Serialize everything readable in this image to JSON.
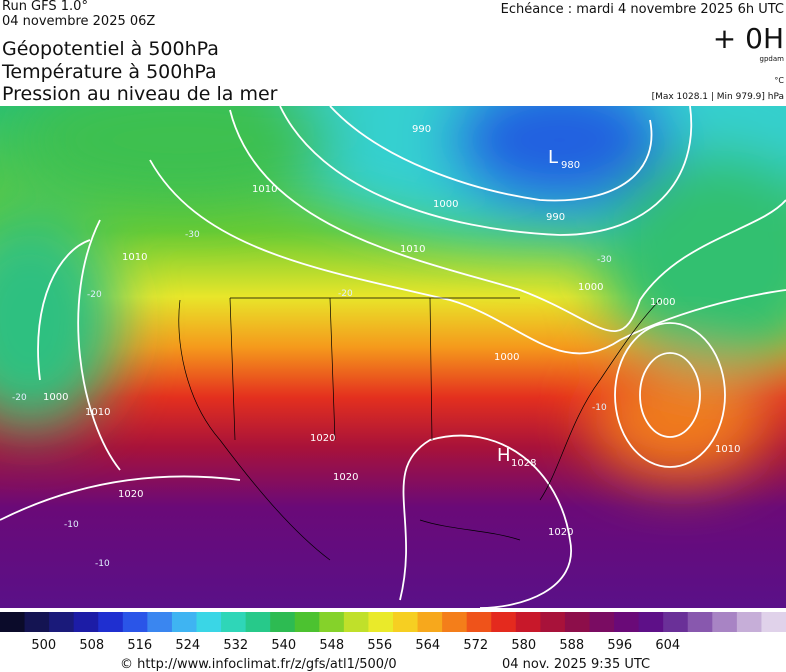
{
  "header": {
    "run": "Run GFS 1.0°",
    "run_date": "04 novembre 2025 06Z",
    "echeance": "Echéance : mardi 4 novembre 2025 6h UTC",
    "offset": "+ 0H",
    "unit_geo": "gpdam",
    "unit_temp": "°C",
    "pressure_range": "[Max 1028.1 | Min 979.9] hPa",
    "titles": [
      "Géopotentiel à 500hPa",
      "Température à 500hPa",
      "Pression au niveau de la mer"
    ]
  },
  "map": {
    "centers": [
      {
        "letter": "L",
        "value": "980"
      },
      {
        "letter": "H",
        "value": "1028"
      }
    ],
    "isobar_labels": [
      "990",
      "1000",
      "1010",
      "1010",
      "1000",
      "990",
      "1000",
      "1010",
      "1020",
      "1020",
      "1020",
      "1020",
      "1010",
      "1000",
      "1010",
      "1000"
    ],
    "temperature_labels": [
      "-30",
      "-20",
      "-20",
      "-10",
      "-20",
      "-30",
      "-10",
      "-10"
    ]
  },
  "colorbar": {
    "lim": [
      492.7,
      623.7
    ],
    "ticks": [
      500,
      508,
      516,
      524,
      532,
      540,
      548,
      556,
      564,
      572,
      580,
      588,
      596,
      604
    ],
    "colors": [
      "#0b0b2a",
      "#141452",
      "#1a1a7a",
      "#1c1ca6",
      "#1f2fd0",
      "#2a55e8",
      "#3a86f0",
      "#3fb4f2",
      "#3ad6e6",
      "#2fd6b8",
      "#27c98a",
      "#2dbb52",
      "#4cc230",
      "#85d22a",
      "#c0e02a",
      "#eaea2a",
      "#f6cf22",
      "#f7a81c",
      "#f47e1a",
      "#ef531a",
      "#e42a1e",
      "#c8182a",
      "#a8123a",
      "#8d0e4a",
      "#7a0c62",
      "#6a0a78",
      "#5e1088",
      "#6a3098",
      "#8858ae",
      "#a884c4",
      "#c6aed8",
      "#e0d2ea"
    ]
  },
  "footer": {
    "url": "© http://www.infoclimat.fr/z/gfs/atl1/500/0",
    "date": "04 nov. 2025  9:35 UTC"
  }
}
